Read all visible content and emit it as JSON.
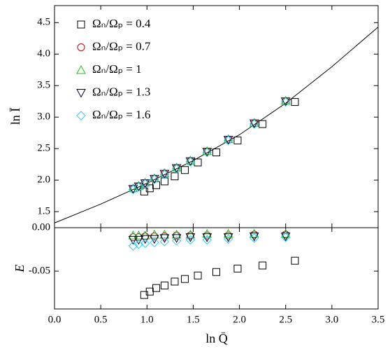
{
  "chart_data": [
    {
      "type": "scatter",
      "y_label": "ln Ī",
      "xlim": [
        0,
        3.5
      ],
      "ylim": [
        1.245,
        4.77
      ],
      "yticks": [
        1.5,
        {
          "value": 2,
          "label": "2.0"
        },
        2.5,
        {
          "value": 3,
          "label": "3.0"
        },
        3.5,
        {
          "value": 4,
          "label": "4.0"
        },
        4.5
      ],
      "legend": "upper left",
      "series": [
        {
          "name": "Ωₙ/Ωₚ = 0.4",
          "color": "#000000",
          "marker": "square",
          "x": [
            0.97,
            1.03,
            1.1,
            1.19,
            1.3,
            1.41,
            1.55,
            1.75,
            1.98,
            2.25,
            2.6
          ],
          "values": [
            1.82,
            1.87,
            1.92,
            1.98,
            2.06,
            2.16,
            2.28,
            2.44,
            2.63,
            2.89,
            3.24
          ]
        },
        {
          "name": "Ωₙ/Ωₚ = 0.7",
          "color": "#cc0000",
          "marker": "circle",
          "x": [
            0.85,
            0.91,
            0.98,
            1.08,
            1.19,
            1.32,
            1.47,
            1.65,
            1.88,
            2.16,
            2.5
          ],
          "values": [
            1.86,
            1.9,
            1.95,
            2.02,
            2.1,
            2.19,
            2.3,
            2.45,
            2.64,
            2.9,
            3.25
          ]
        },
        {
          "name": "Ωₙ/Ωₚ = 1",
          "color": "#22bb22",
          "marker": "triangle-up",
          "x": [
            0.85,
            0.91,
            0.98,
            1.08,
            1.19,
            1.32,
            1.47,
            1.65,
            1.88,
            2.16,
            2.5
          ],
          "values": [
            1.87,
            1.91,
            1.96,
            2.03,
            2.11,
            2.2,
            2.31,
            2.46,
            2.65,
            2.91,
            3.26
          ]
        },
        {
          "name": "Ωₙ/Ωₚ = 1.3",
          "color": "#000033",
          "marker": "triangle-down",
          "x": [
            0.85,
            0.91,
            0.98,
            1.08,
            1.19,
            1.32,
            1.47,
            1.65,
            1.88,
            2.16,
            2.5
          ],
          "values": [
            1.86,
            1.9,
            1.95,
            2.02,
            2.1,
            2.19,
            2.3,
            2.45,
            2.64,
            2.9,
            3.25
          ]
        },
        {
          "name": "Ωₙ/Ωₚ = 1.6",
          "color": "#33ccee",
          "marker": "diamond",
          "x": [
            0.85,
            0.91,
            0.98,
            1.08,
            1.19,
            1.32,
            1.47,
            1.65,
            1.88,
            2.16,
            2.5
          ],
          "values": [
            1.85,
            1.89,
            1.94,
            2.01,
            2.09,
            2.18,
            2.29,
            2.44,
            2.63,
            2.89,
            3.24
          ]
        }
      ],
      "curve": {
        "color": "#000000",
        "x": [
          0,
          0.5,
          1.0,
          1.5,
          2.0,
          2.5,
          3.0,
          3.5
        ],
        "y": [
          1.32,
          1.62,
          1.95,
          2.31,
          2.72,
          3.22,
          3.8,
          4.43
        ]
      }
    },
    {
      "type": "scatter",
      "x_label": "ln Q̄",
      "y_label": "E",
      "xlim": [
        0,
        3.5
      ],
      "xticks": [
        {
          "value": 0,
          "label": "0.0"
        },
        0.5,
        {
          "value": 1,
          "label": "1.0"
        },
        1.5,
        {
          "value": 2,
          "label": "2.0"
        },
        2.5,
        {
          "value": 3,
          "label": "3.0"
        },
        3.5
      ],
      "ylim": [
        -0.0935,
        0
      ],
      "yticks": [
        {
          "value": 0,
          "label": "0.00"
        },
        -0.05
      ],
      "series": [
        {
          "color": "#000000",
          "marker": "square",
          "x": [
            0.97,
            1.03,
            1.1,
            1.19,
            1.3,
            1.41,
            1.55,
            1.75,
            1.98,
            2.25,
            2.6
          ],
          "values": [
            -0.0774,
            -0.0735,
            -0.0694,
            -0.0665,
            -0.062,
            -0.059,
            -0.055,
            -0.051,
            -0.047,
            -0.0435,
            -0.038
          ]
        },
        {
          "color": "#cc0000",
          "marker": "circle",
          "x": [
            0.85,
            0.91,
            0.98,
            1.08,
            1.19,
            1.32,
            1.47,
            1.65,
            1.88,
            2.16,
            2.5
          ],
          "values": [
            -0.011,
            -0.011,
            -0.01,
            -0.01,
            -0.01,
            -0.009,
            -0.009,
            -0.009,
            -0.009,
            -0.008,
            -0.008
          ]
        },
        {
          "color": "#22bb22",
          "marker": "triangle-up",
          "x": [
            0.85,
            0.91,
            0.98,
            1.08,
            1.19,
            1.32,
            1.47,
            1.65,
            1.88,
            2.16,
            2.5
          ],
          "values": [
            -0.009,
            -0.009,
            -0.009,
            -0.008,
            -0.008,
            -0.008,
            -0.008,
            -0.007,
            -0.007,
            -0.007,
            -0.007
          ]
        },
        {
          "color": "#000033",
          "marker": "triangle-down",
          "x": [
            0.85,
            0.91,
            0.98,
            1.08,
            1.19,
            1.32,
            1.47,
            1.65,
            1.88,
            2.16,
            2.5
          ],
          "values": [
            -0.014,
            -0.014,
            -0.013,
            -0.013,
            -0.012,
            -0.012,
            -0.011,
            -0.011,
            -0.011,
            -0.01,
            -0.01
          ]
        },
        {
          "color": "#33ccee",
          "marker": "diamond",
          "x": [
            0.85,
            0.91,
            0.98,
            1.08,
            1.19,
            1.32,
            1.47,
            1.65,
            1.88,
            2.16,
            2.5
          ],
          "values": [
            -0.021,
            -0.019,
            -0.018,
            -0.017,
            -0.016,
            -0.015,
            -0.014,
            -0.014,
            -0.013,
            -0.012,
            -0.011
          ]
        }
      ]
    }
  ]
}
